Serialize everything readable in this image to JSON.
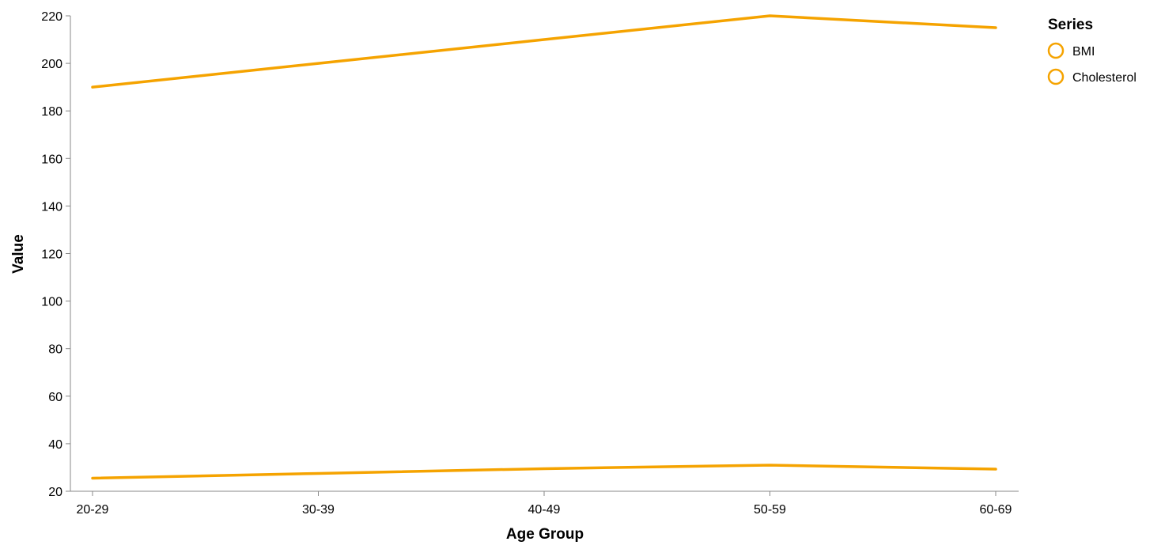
{
  "chart_data": {
    "type": "line",
    "categories": [
      "20-29",
      "30-39",
      "40-49",
      "50-59",
      "60-69"
    ],
    "series": [
      {
        "name": "BMI",
        "values": [
          25.5,
          27.5,
          29.5,
          31,
          29.3
        ],
        "color": "#F5A300"
      },
      {
        "name": "Cholesterol",
        "values": [
          190,
          200,
          210,
          220,
          215
        ],
        "color": "#F5A300"
      }
    ],
    "xlabel": "Age Group",
    "ylabel": "Value",
    "ylim": [
      20,
      220
    ],
    "yticks": [
      "20",
      "40",
      "60",
      "80",
      "100",
      "120",
      "140",
      "160",
      "180",
      "200",
      "220"
    ],
    "legend": {
      "title": "Series",
      "placement": "top-right"
    },
    "grid": false,
    "axis_color": "#888888"
  }
}
